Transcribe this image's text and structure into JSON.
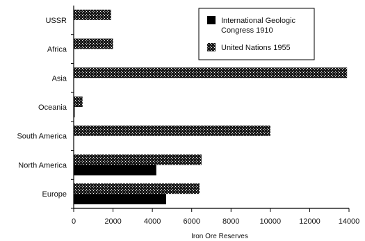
{
  "chart_data": {
    "type": "bar",
    "orientation": "horizontal",
    "title": "",
    "xlabel": "Iron Ore Reserves",
    "ylabel": "",
    "categories": [
      "USSR",
      "Africa",
      "Asia",
      "Oceania",
      "South America",
      "North America",
      "Europe"
    ],
    "series": [
      {
        "name": "International Geologic Congress 1910",
        "color": "#000000",
        "pattern": "solid",
        "values": [
          0,
          0,
          0,
          50,
          0,
          4200,
          4700
        ]
      },
      {
        "name": "United Nations 1955",
        "color": "#333333",
        "pattern": "dotted",
        "values": [
          1900,
          2000,
          13900,
          450,
          10000,
          6500,
          6400
        ]
      }
    ],
    "xlim": [
      0,
      14000
    ],
    "xticks": [
      0,
      2000,
      4000,
      6000,
      8000,
      10000,
      12000,
      14000
    ],
    "grid": false,
    "legend_position": "top-right"
  }
}
